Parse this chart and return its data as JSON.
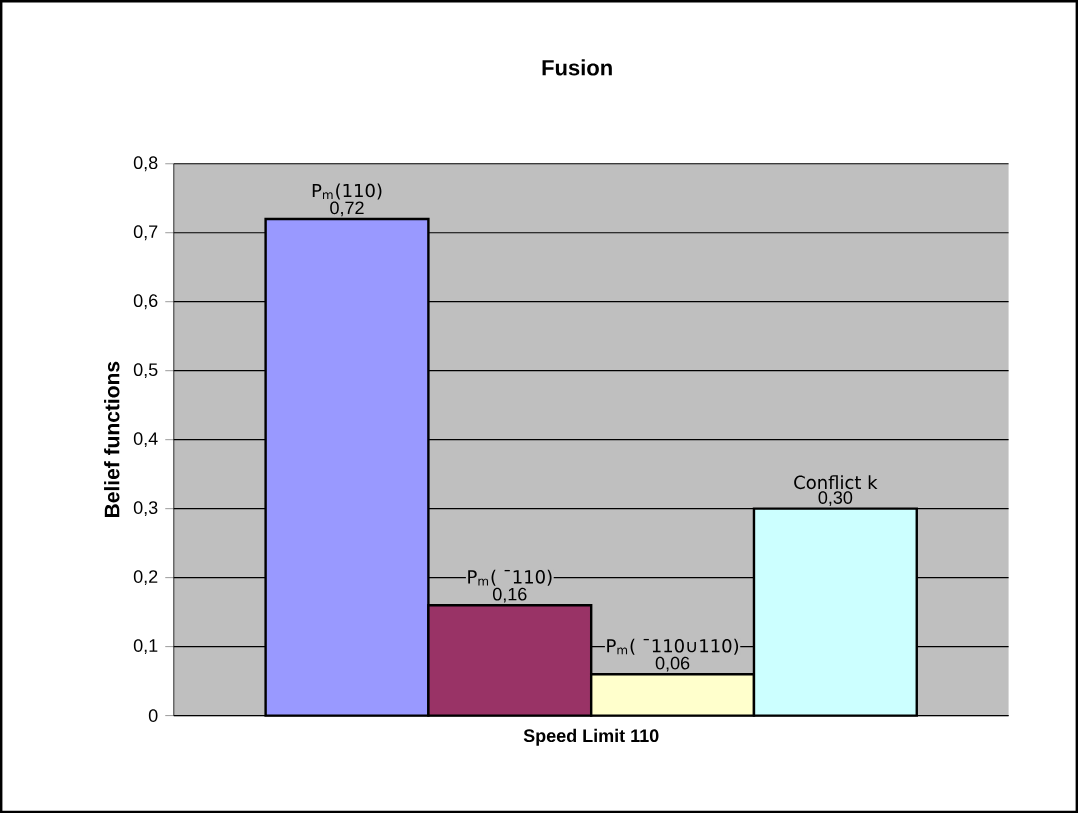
{
  "chart_data": {
    "type": "bar",
    "title": "Fusion",
    "xlabel": "Speed Limit 110",
    "ylabel": "Belief functions",
    "categories": [
      null
    ],
    "series": [
      {
        "name": "P$_{m}$(110)",
        "color": "#9999ff",
        "values": [
          0.72
        ],
        "value_labels": [
          "0,72"
        ]
      },
      {
        "name": "P$_{m}$( ¯110)",
        "color": "#993366",
        "values": [
          0.16
        ],
        "value_labels": [
          "0,16"
        ]
      },
      {
        "name": "P$_{m}$( ¯110∪110)",
        "color": "#ffffcc",
        "values": [
          0.06
        ],
        "value_labels": [
          "0,06"
        ]
      },
      {
        "name": "Conflict k",
        "color": "#ccffff",
        "values": [
          0.3
        ],
        "value_labels": [
          "0,30"
        ]
      }
    ],
    "ylim": [
      0,
      0.8
    ],
    "yticks": [
      {
        "value": 0,
        "label": "0"
      },
      {
        "value": 0.1,
        "label": "0,1"
      },
      {
        "value": 0.2,
        "label": "0,2"
      },
      {
        "value": 0.3,
        "label": "0,3"
      },
      {
        "value": 0.4,
        "label": "0,4"
      },
      {
        "value": 0.5,
        "label": "0,5"
      },
      {
        "value": 0.6,
        "label": "0,6"
      },
      {
        "value": 0.7,
        "label": "0,7"
      },
      {
        "value": 0.8,
        "label": "0,8"
      }
    ],
    "grid": "y"
  }
}
